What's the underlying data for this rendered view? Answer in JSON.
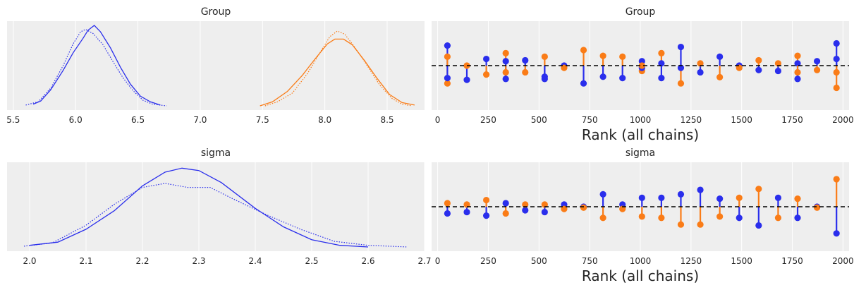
{
  "colors": {
    "chain_a": "#2a2eec",
    "chain_b": "#fa7c17",
    "panel_bg": "#eeeeee",
    "refline": "#000000"
  },
  "chart_data": [
    {
      "type": "line",
      "title": "Group",
      "xlabel": "",
      "ylabel": "",
      "xlim": [
        5.45,
        8.8
      ],
      "xticks": [
        5.5,
        6.0,
        6.5,
        7.0,
        7.5,
        8.0,
        8.5
      ],
      "xtick_labels": [
        "5.5",
        "6.0",
        "6.5",
        "7.0",
        "7.5",
        "8.0",
        "8.5"
      ],
      "yticks_visible": false,
      "grid": "vertical",
      "series": [
        {
          "color": "#2a2eec",
          "style": "solid",
          "points": [
            [
              5.66,
              0.02
            ],
            [
              5.72,
              0.06
            ],
            [
              5.8,
              0.2
            ],
            [
              5.9,
              0.44
            ],
            [
              5.98,
              0.66
            ],
            [
              6.06,
              0.84
            ],
            [
              6.1,
              0.94
            ],
            [
              6.15,
              1.0
            ],
            [
              6.2,
              0.92
            ],
            [
              6.28,
              0.72
            ],
            [
              6.36,
              0.48
            ],
            [
              6.44,
              0.27
            ],
            [
              6.52,
              0.12
            ],
            [
              6.6,
              0.05
            ],
            [
              6.68,
              0.01
            ]
          ]
        },
        {
          "color": "#2a2eec",
          "style": "dotted",
          "points": [
            [
              5.6,
              0.01
            ],
            [
              5.7,
              0.05
            ],
            [
              5.8,
              0.22
            ],
            [
              5.9,
              0.5
            ],
            [
              5.98,
              0.77
            ],
            [
              6.04,
              0.92
            ],
            [
              6.08,
              0.95
            ],
            [
              6.14,
              0.9
            ],
            [
              6.22,
              0.76
            ],
            [
              6.3,
              0.55
            ],
            [
              6.38,
              0.35
            ],
            [
              6.46,
              0.19
            ],
            [
              6.54,
              0.07
            ],
            [
              6.62,
              0.02
            ],
            [
              6.73,
              0.0
            ]
          ]
        },
        {
          "color": "#fa7c17",
          "style": "solid",
          "points": [
            [
              7.48,
              0.0
            ],
            [
              7.58,
              0.05
            ],
            [
              7.7,
              0.18
            ],
            [
              7.82,
              0.38
            ],
            [
              7.92,
              0.58
            ],
            [
              8.02,
              0.77
            ],
            [
              8.08,
              0.83
            ],
            [
              8.15,
              0.83
            ],
            [
              8.22,
              0.76
            ],
            [
              8.32,
              0.56
            ],
            [
              8.42,
              0.34
            ],
            [
              8.52,
              0.14
            ],
            [
              8.62,
              0.04
            ],
            [
              8.72,
              0.01
            ]
          ]
        },
        {
          "color": "#fa7c17",
          "style": "dotted",
          "points": [
            [
              7.52,
              0.0
            ],
            [
              7.62,
              0.05
            ],
            [
              7.74,
              0.16
            ],
            [
              7.86,
              0.4
            ],
            [
              7.96,
              0.66
            ],
            [
              8.04,
              0.86
            ],
            [
              8.1,
              0.93
            ],
            [
              8.16,
              0.89
            ],
            [
              8.24,
              0.73
            ],
            [
              8.34,
              0.5
            ],
            [
              8.44,
              0.26
            ],
            [
              8.54,
              0.09
            ],
            [
              8.62,
              0.02
            ],
            [
              8.7,
              0.0
            ]
          ]
        }
      ]
    },
    {
      "type": "scatter",
      "title": "Group",
      "xlabel": "Rank (all chains)",
      "ylabel": "",
      "xlim": [
        -30,
        2030
      ],
      "ylim": [
        -1,
        1
      ],
      "xticks": [
        0,
        250,
        500,
        750,
        1000,
        1250,
        1500,
        1750,
        2000
      ],
      "xtick_labels": [
        "0",
        "250",
        "500",
        "750",
        "1000",
        "1250",
        "1500",
        "1750",
        "2000"
      ],
      "yticks_visible": false,
      "grid": "vertical",
      "refline": 0,
      "bin_centers": [
        48,
        144,
        240,
        336,
        432,
        528,
        624,
        720,
        816,
        912,
        1008,
        1104,
        1200,
        1296,
        1392,
        1488,
        1584,
        1680,
        1776,
        1872,
        1968
      ],
      "series": [
        {
          "color": "#2a2eec",
          "values": [
            0.45,
            -0.32,
            0.15,
            -0.3,
            0.12,
            -0.25,
            0.0,
            -0.4,
            -0.25,
            -0.28,
            0.1,
            -0.28,
            0.42,
            -0.15,
            0.2,
            0.0,
            -0.1,
            -0.12,
            -0.3,
            0.1,
            0.5
          ]
        },
        {
          "color": "#fa7c17",
          "values": [
            -0.4,
            0.0,
            -0.2,
            0.28,
            -0.15,
            0.2,
            -0.05,
            0.35,
            0.22,
            0.2,
            -0.12,
            0.28,
            -0.4,
            0.05,
            -0.26,
            -0.05,
            0.12,
            0.05,
            0.22,
            -0.1,
            -0.5
          ]
        },
        {
          "color": "#2a2eec",
          "values": [
            -0.28,
            null,
            null,
            0.1,
            null,
            -0.3,
            null,
            null,
            null,
            null,
            -0.05,
            0.05,
            -0.05,
            null,
            null,
            null,
            null,
            null,
            0.05,
            null,
            0.15
          ]
        },
        {
          "color": "#fa7c17",
          "values": [
            0.2,
            null,
            null,
            -0.15,
            null,
            null,
            null,
            null,
            null,
            null,
            0.0,
            null,
            null,
            null,
            null,
            null,
            null,
            null,
            -0.15,
            null,
            -0.15
          ]
        }
      ]
    },
    {
      "type": "line",
      "title": "sigma",
      "xlabel": "",
      "ylabel": "",
      "xlim": [
        1.96,
        2.7
      ],
      "xticks": [
        2.0,
        2.1,
        2.2,
        2.3,
        2.4,
        2.5,
        2.6,
        2.7
      ],
      "xtick_labels": [
        "2.0",
        "2.1",
        "2.2",
        "2.3",
        "2.4",
        "2.5",
        "2.6",
        "2.7"
      ],
      "yticks_visible": false,
      "grid": "vertical",
      "series": [
        {
          "color": "#2a2eec",
          "style": "solid",
          "points": [
            [
              2.0,
              0.02
            ],
            [
              2.05,
              0.06
            ],
            [
              2.1,
              0.22
            ],
            [
              2.15,
              0.45
            ],
            [
              2.2,
              0.76
            ],
            [
              2.24,
              0.93
            ],
            [
              2.27,
              0.98
            ],
            [
              2.3,
              0.95
            ],
            [
              2.34,
              0.8
            ],
            [
              2.4,
              0.48
            ],
            [
              2.45,
              0.25
            ],
            [
              2.5,
              0.09
            ],
            [
              2.55,
              0.02
            ],
            [
              2.6,
              0.0
            ]
          ]
        },
        {
          "color": "#2a2eec",
          "style": "dotted",
          "points": [
            [
              1.99,
              0.01
            ],
            [
              2.04,
              0.05
            ],
            [
              2.1,
              0.27
            ],
            [
              2.15,
              0.53
            ],
            [
              2.2,
              0.74
            ],
            [
              2.24,
              0.79
            ],
            [
              2.28,
              0.74
            ],
            [
              2.32,
              0.74
            ],
            [
              2.36,
              0.6
            ],
            [
              2.42,
              0.4
            ],
            [
              2.48,
              0.22
            ],
            [
              2.54,
              0.07
            ],
            [
              2.6,
              0.02
            ],
            [
              2.67,
              0.0
            ]
          ]
        }
      ]
    },
    {
      "type": "scatter",
      "title": "sigma",
      "xlabel": "Rank (all chains)",
      "ylabel": "",
      "xlim": [
        -30,
        2030
      ],
      "ylim": [
        -1,
        1
      ],
      "xticks": [
        0,
        250,
        500,
        750,
        1000,
        1250,
        1500,
        1750,
        2000
      ],
      "xtick_labels": [
        "0",
        "250",
        "500",
        "750",
        "1000",
        "1250",
        "1500",
        "1750",
        "2000"
      ],
      "yticks_visible": false,
      "grid": "vertical",
      "refline": 0,
      "bin_centers": [
        48,
        144,
        240,
        336,
        432,
        528,
        624,
        720,
        816,
        912,
        1008,
        1104,
        1200,
        1296,
        1392,
        1488,
        1584,
        1680,
        1776,
        1872,
        1968
      ],
      "series": [
        {
          "color": "#2a2eec",
          "values": [
            -0.15,
            -0.12,
            -0.2,
            0.08,
            -0.08,
            -0.12,
            0.05,
            0.0,
            0.28,
            0.05,
            0.2,
            0.2,
            0.28,
            0.38,
            0.18,
            -0.25,
            -0.42,
            0.2,
            -0.25,
            0.0,
            -0.6
          ]
        },
        {
          "color": "#fa7c17",
          "values": [
            0.08,
            0.05,
            0.15,
            -0.15,
            0.05,
            0.05,
            -0.05,
            -0.02,
            -0.25,
            -0.05,
            -0.22,
            -0.25,
            -0.4,
            -0.4,
            -0.22,
            0.2,
            0.4,
            -0.25,
            0.18,
            -0.02,
            0.62
          ]
        }
      ]
    }
  ]
}
